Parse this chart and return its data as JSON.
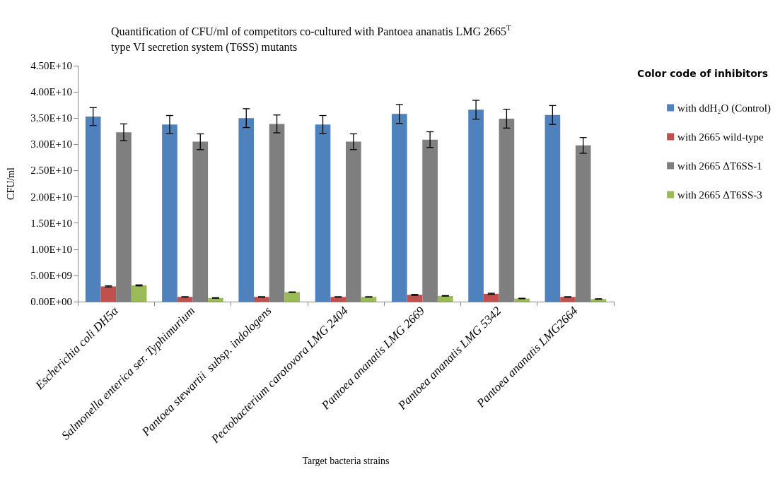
{
  "chart_data": {
    "type": "bar",
    "title": "Quantification of CFU/ml of competitors co-cultured with Pantoea ananatis LMG 2665$^{T}$ type VI secretion system (T6SS) mutants",
    "xlabel": "Target bacteria strains",
    "ylabel": "CFU/ml",
    "legend_title": "Color code of inhibitors",
    "categories": [
      "Escherichia coli DH5α",
      "Salmonella enterica ser. Typhimurium",
      "Pantoea stewartii  subsp. indologens",
      "Pectobacterium carotovora LMG 2404",
      "Pantoea ananatis LMG 2669",
      "Pantoea ananatis LMG 5342",
      "Pantoea ananatis LMG2664"
    ],
    "series": [
      {
        "name": "with ddH₂O (Control)",
        "color": "#4f81bd",
        "values": [
          35300000000.0,
          33800000000.0,
          35000000000.0,
          33800000000.0,
          35800000000.0,
          36600000000.0,
          35600000000.0
        ],
        "errors": [
          1700000000.0,
          1700000000.0,
          1800000000.0,
          1700000000.0,
          1800000000.0,
          1800000000.0,
          1800000000.0
        ]
      },
      {
        "name": "with 2665 wild-type",
        "color": "#c0504d",
        "values": [
          2900000000.0,
          900000000.0,
          900000000.0,
          900000000.0,
          1300000000.0,
          1500000000.0,
          900000000.0
        ],
        "errors": [
          100000000.0,
          50000000.0,
          50000000.0,
          50000000.0,
          100000000.0,
          100000000.0,
          50000000.0
        ]
      },
      {
        "name": "with 2665 ΔT6SS-1",
        "color": "#7f7f7f",
        "values": [
          32300000000.0,
          30500000000.0,
          33900000000.0,
          30500000000.0,
          30900000000.0,
          34900000000.0,
          29800000000.0
        ],
        "errors": [
          1600000000.0,
          1500000000.0,
          1700000000.0,
          1500000000.0,
          1500000000.0,
          1800000000.0,
          1500000000.0
        ]
      },
      {
        "name": "with 2665 ΔT6SS-3",
        "color": "#9bbb59",
        "values": [
          3100000000.0,
          700000000.0,
          1800000000.0,
          900000000.0,
          1100000000.0,
          600000000.0,
          500000000.0
        ],
        "errors": [
          100000000.0,
          50000000.0,
          50000000.0,
          50000000.0,
          50000000.0,
          50000000.0,
          50000000.0
        ]
      }
    ],
    "ylim": [
      0,
      45000000000.0
    ],
    "yticks": [
      {
        "value": 0,
        "label": "0.00E+00"
      },
      {
        "value": 5000000000.0,
        "label": "5.00E+09"
      },
      {
        "value": 10000000000.0,
        "label": "1.00E+10"
      },
      {
        "value": 15000000000.0,
        "label": "1.50E+10"
      },
      {
        "value": 20000000000.0,
        "label": "2.00E+10"
      },
      {
        "value": 25000000000.0,
        "label": "2.50E+10"
      },
      {
        "value": 30000000000.0,
        "label": "3.00E+10"
      },
      {
        "value": 35000000000.0,
        "label": "3.50E+10"
      },
      {
        "value": 40000000000.0,
        "label": "4.00E+10"
      },
      {
        "value": 45000000000.0,
        "label": "4.50E+10"
      }
    ],
    "grid": false,
    "legend": "right"
  }
}
